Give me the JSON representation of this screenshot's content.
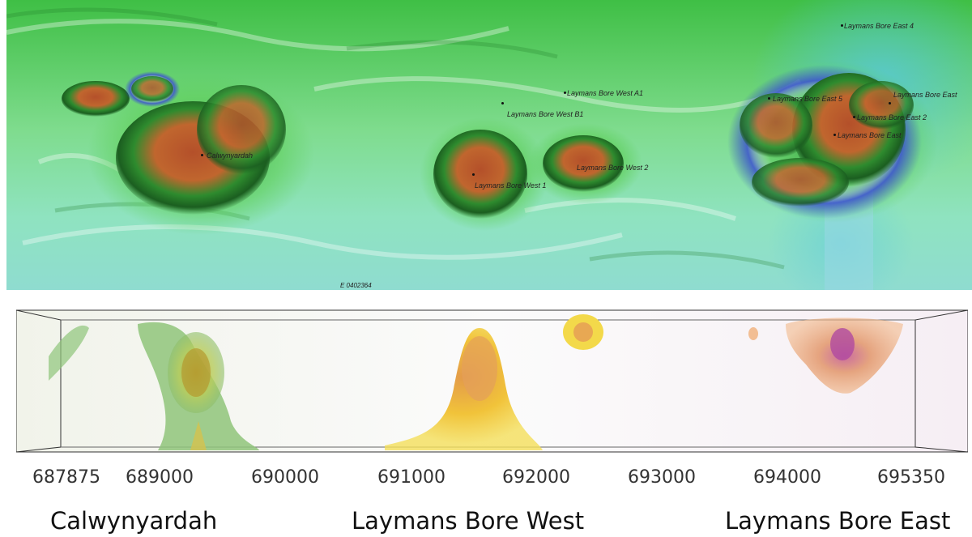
{
  "map": {
    "easting_label": "E 0402364",
    "features": [
      {
        "id": "calwynyardah",
        "label": "Calwynyardah"
      },
      {
        "id": "lbw-a1",
        "label": "Laymans Bore West A1"
      },
      {
        "id": "lbw-b1",
        "label": "Laymans Bore West B1"
      },
      {
        "id": "lbw-2",
        "label": "Laymans Bore West 2"
      },
      {
        "id": "lbw-1",
        "label": "Laymans Bore West 1"
      },
      {
        "id": "lbe-4",
        "label": "Laymans Bore East 4"
      },
      {
        "id": "lbe-5",
        "label": "Laymans Bore East 5"
      },
      {
        "id": "lbe",
        "label": "Laymans Bore East"
      },
      {
        "id": "lbe-2",
        "label": "Laymans Bore East 2"
      },
      {
        "id": "lbe-c",
        "label": "Laymans Bore East"
      }
    ]
  },
  "section": {
    "ticks": [
      "687875",
      "689000",
      "690000",
      "691000",
      "692000",
      "693000",
      "694000",
      "695350"
    ],
    "zones": [
      "Calwynyardah",
      "Laymans Bore West",
      "Laymans Bore East"
    ]
  }
}
